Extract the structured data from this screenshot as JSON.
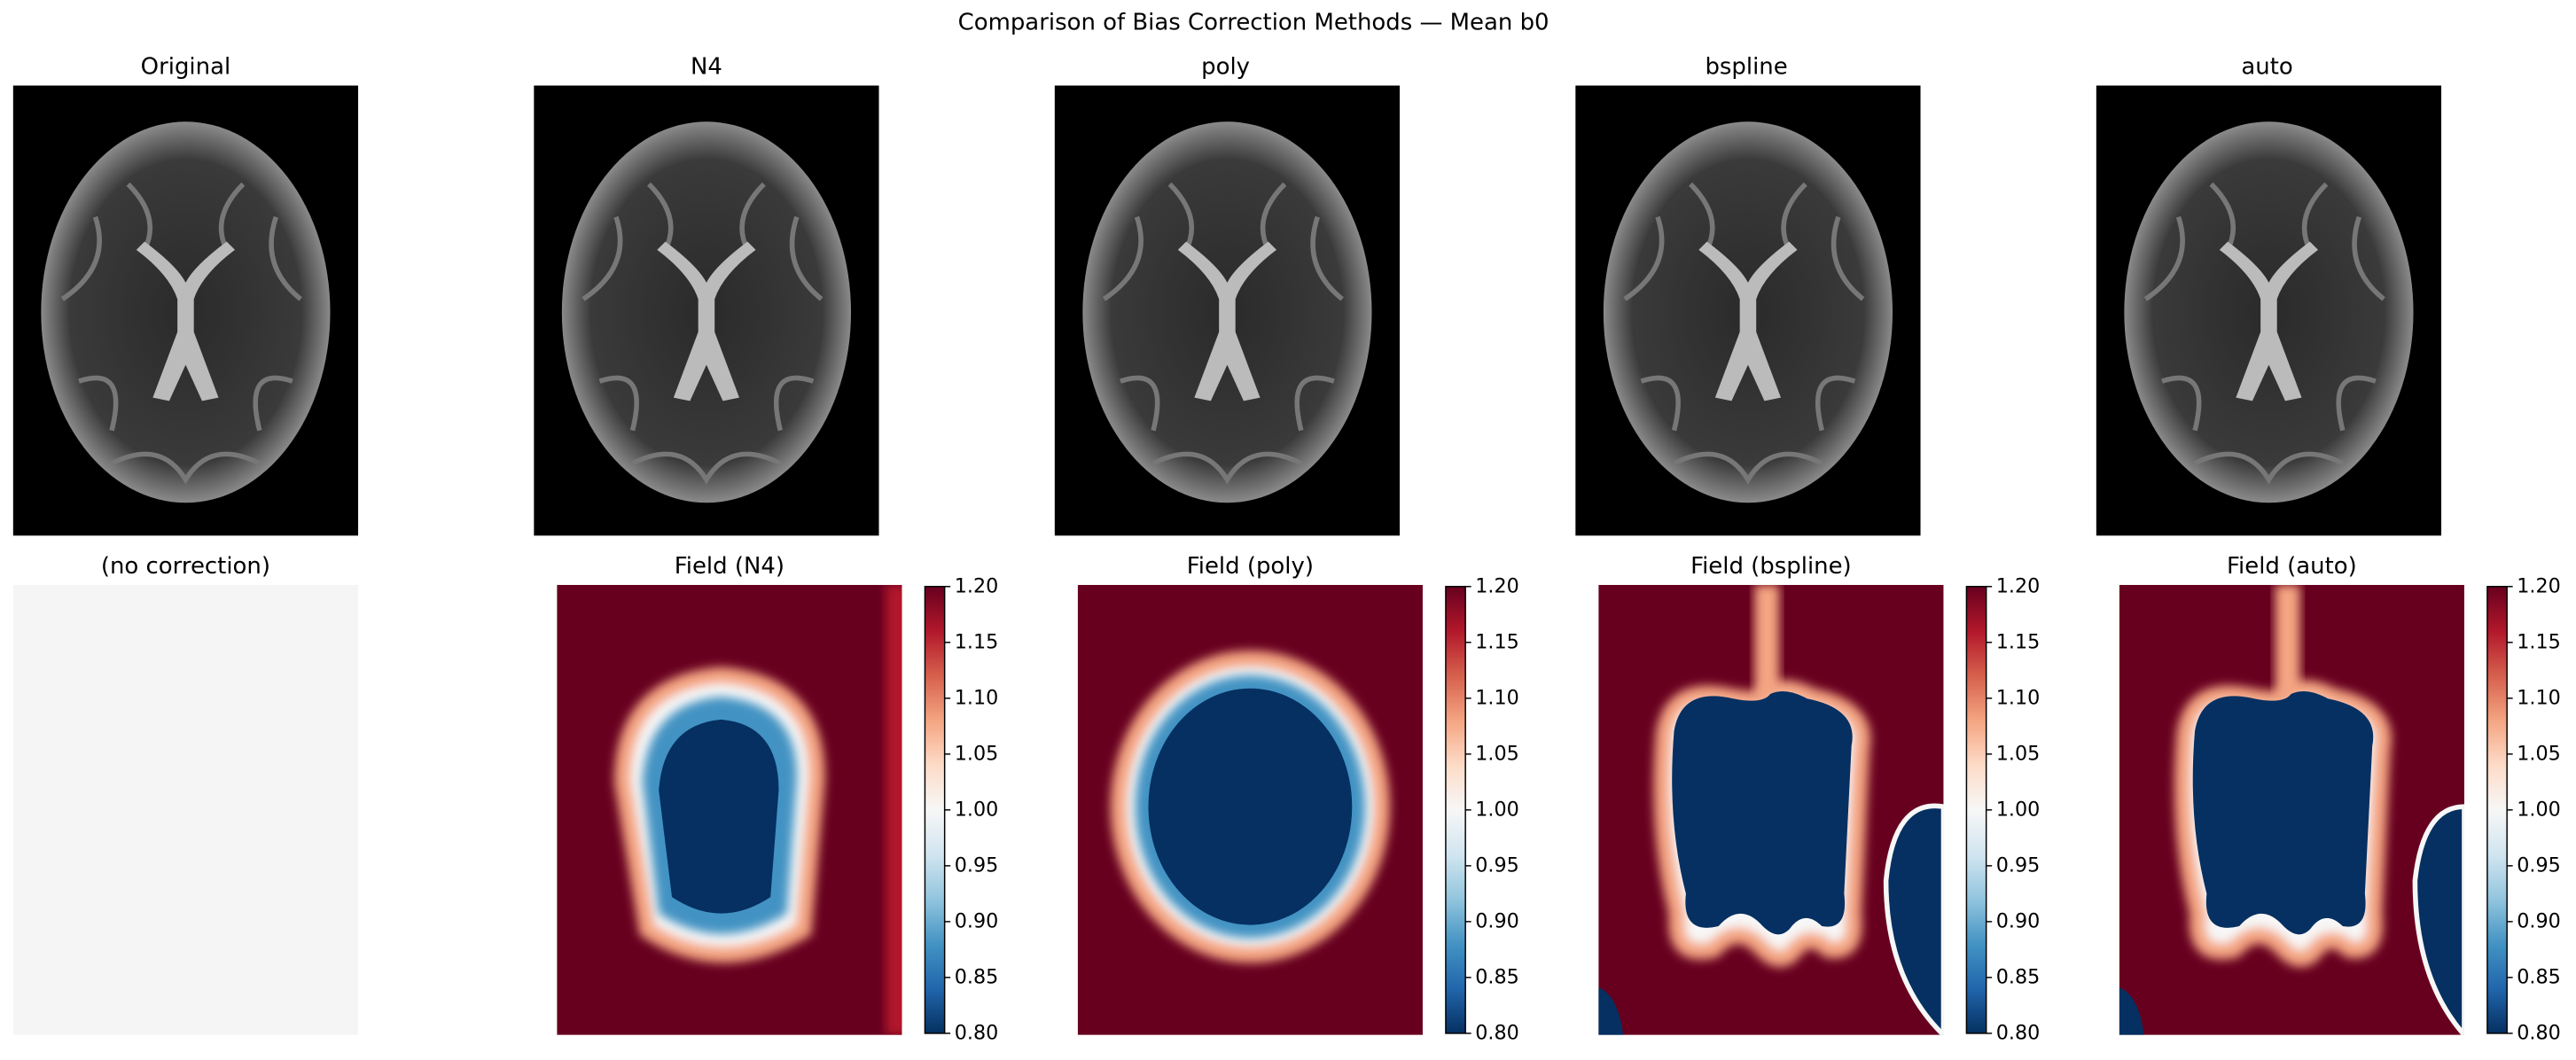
{
  "title": "Comparison of Bias Correction Methods — Mean b0",
  "images": [
    {
      "title": "Original"
    },
    {
      "title": "N4"
    },
    {
      "title": "poly"
    },
    {
      "title": "bspline"
    },
    {
      "title": "auto"
    }
  ],
  "placeholder": {
    "title": "(no correction)"
  },
  "fields": [
    {
      "title": "Field (N4)",
      "colorbar": {
        "lim": [
          0.8,
          1.2
        ],
        "ticks": [
          {
            "value": 0.8,
            "label": "0.80"
          },
          {
            "value": 0.85,
            "label": "0.85"
          },
          {
            "value": 0.9,
            "label": "0.90"
          },
          {
            "value": 0.95,
            "label": "0.95"
          },
          {
            "value": 1.0,
            "label": "1.00"
          },
          {
            "value": 1.05,
            "label": "1.05"
          },
          {
            "value": 1.1,
            "label": "1.10"
          },
          {
            "value": 1.15,
            "label": "1.15"
          },
          {
            "value": 1.2,
            "label": "1.20"
          }
        ]
      }
    },
    {
      "title": "Field (poly)",
      "colorbar": {
        "lim": [
          0.8,
          1.2
        ],
        "ticks": [
          {
            "value": 0.8,
            "label": "0.80"
          },
          {
            "value": 0.85,
            "label": "0.85"
          },
          {
            "value": 0.9,
            "label": "0.90"
          },
          {
            "value": 0.95,
            "label": "0.95"
          },
          {
            "value": 1.0,
            "label": "1.00"
          },
          {
            "value": 1.05,
            "label": "1.05"
          },
          {
            "value": 1.1,
            "label": "1.10"
          },
          {
            "value": 1.15,
            "label": "1.15"
          },
          {
            "value": 1.2,
            "label": "1.20"
          }
        ]
      }
    },
    {
      "title": "Field (bspline)",
      "colorbar": {
        "lim": [
          0.8,
          1.2
        ],
        "ticks": [
          {
            "value": 0.8,
            "label": "0.80"
          },
          {
            "value": 0.85,
            "label": "0.85"
          },
          {
            "value": 0.9,
            "label": "0.90"
          },
          {
            "value": 0.95,
            "label": "0.95"
          },
          {
            "value": 1.0,
            "label": "1.00"
          },
          {
            "value": 1.05,
            "label": "1.05"
          },
          {
            "value": 1.1,
            "label": "1.10"
          },
          {
            "value": 1.15,
            "label": "1.15"
          },
          {
            "value": 1.2,
            "label": "1.20"
          }
        ]
      }
    },
    {
      "title": "Field (auto)",
      "colorbar": {
        "lim": [
          0.8,
          1.2
        ],
        "ticks": [
          {
            "value": 0.8,
            "label": "0.80"
          },
          {
            "value": 0.85,
            "label": "0.85"
          },
          {
            "value": 0.9,
            "label": "0.90"
          },
          {
            "value": 0.95,
            "label": "0.95"
          },
          {
            "value": 1.0,
            "label": "1.00"
          },
          {
            "value": 1.05,
            "label": "1.05"
          },
          {
            "value": 1.1,
            "label": "1.10"
          },
          {
            "value": 1.15,
            "label": "1.15"
          },
          {
            "value": 1.2,
            "label": "1.20"
          }
        ]
      }
    }
  ]
}
